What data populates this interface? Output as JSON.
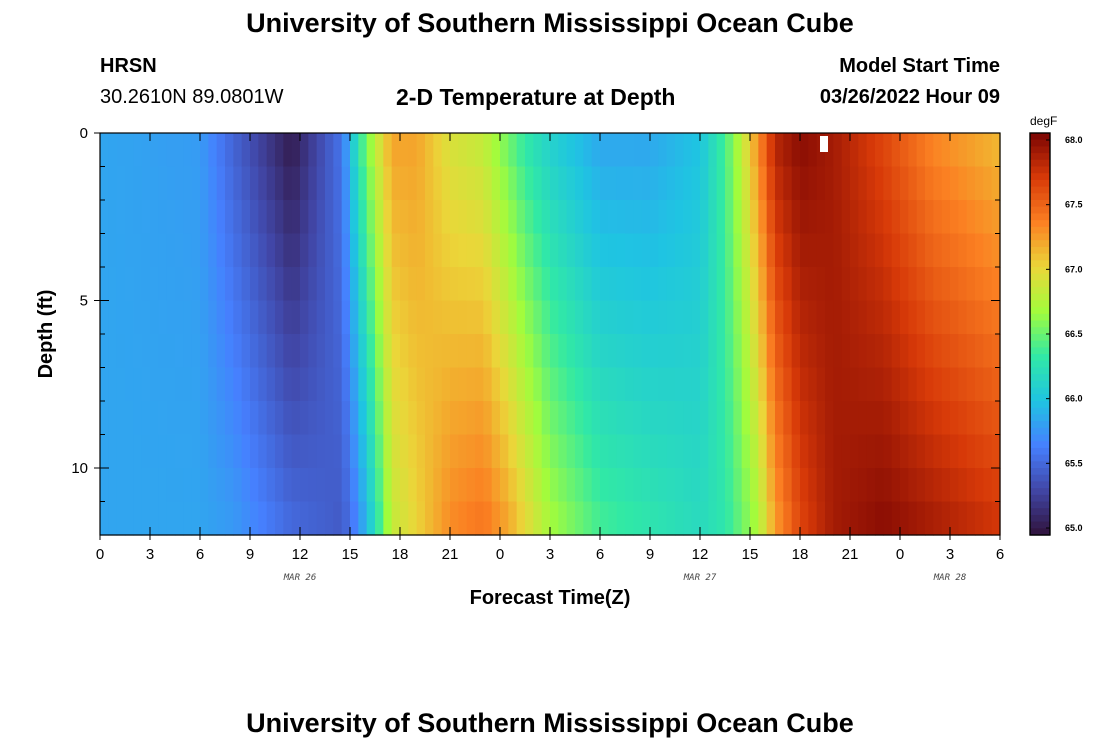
{
  "header": {
    "title": "University of Southern Mississippi Ocean Cube",
    "station": "HRSN",
    "coordinates": "30.2610N  89.0801W",
    "subtitle": "2-D Temperature at Depth",
    "model_start_label": "Model Start Time",
    "model_start_value": "03/26/2022 Hour 09"
  },
  "footer": {
    "title": "University of Southern Mississippi Ocean Cube"
  },
  "chart_data": {
    "type": "heatmap",
    "title": "2-D Temperature at Depth",
    "xlabel": "Forecast Time(Z)",
    "ylabel": "Depth (ft)",
    "x_tick_labels": [
      "0",
      "3",
      "6",
      "9",
      "12",
      "15",
      "18",
      "21",
      "0",
      "3",
      "6",
      "9",
      "12",
      "15",
      "18",
      "21",
      "0",
      "3",
      "6"
    ],
    "date_labels": [
      "MAR 26",
      "MAR 27",
      "MAR 28"
    ],
    "y_tick_labels": [
      "0",
      "5",
      "10"
    ],
    "ylim": [
      0,
      12
    ],
    "colorbar": {
      "unit": "degF",
      "min": 65.0,
      "max": 68.0,
      "tick_labels": [
        "68.0",
        "67.5",
        "67.0",
        "66.5",
        "66.0",
        "65.5",
        "65.0"
      ],
      "colors": [
        "#30123b",
        "#4146a6",
        "#4680ff",
        "#1fc4e2",
        "#31e9a5",
        "#a2fc3c",
        "#ebd639",
        "#fb8022",
        "#d73908",
        "#7a0403"
      ]
    },
    "time_points": [
      {
        "hours": 0,
        "surface": 65.85,
        "bottom": 65.85
      },
      {
        "hours": 6,
        "surface": 65.8,
        "bottom": 65.85
      },
      {
        "hours": 8,
        "surface": 65.5,
        "bottom": 65.8
      },
      {
        "hours": 11.5,
        "surface": 65.05,
        "bottom": 65.55
      },
      {
        "hours": 14.5,
        "surface": 65.6,
        "bottom": 65.45
      },
      {
        "hours": 15.5,
        "surface": 66.3,
        "bottom": 65.7
      },
      {
        "hours": 16.5,
        "surface": 66.8,
        "bottom": 66.2
      },
      {
        "hours": 17.5,
        "surface": 67.2,
        "bottom": 66.8
      },
      {
        "hours": 19,
        "surface": 67.2,
        "bottom": 67.0
      },
      {
        "hours": 21,
        "surface": 66.9,
        "bottom": 67.3
      },
      {
        "hours": 23,
        "surface": 66.8,
        "bottom": 67.4
      },
      {
        "hours": 24.5,
        "surface": 66.5,
        "bottom": 67.2
      },
      {
        "hours": 25.5,
        "surface": 66.3,
        "bottom": 67.0
      },
      {
        "hours": 27,
        "surface": 66.1,
        "bottom": 66.7
      },
      {
        "hours": 30,
        "surface": 65.85,
        "bottom": 66.4
      },
      {
        "hours": 33,
        "surface": 65.85,
        "bottom": 66.3
      },
      {
        "hours": 36,
        "surface": 66.0,
        "bottom": 66.2
      },
      {
        "hours": 37.5,
        "surface": 66.4,
        "bottom": 66.3
      },
      {
        "hours": 38.5,
        "surface": 66.8,
        "bottom": 66.5
      },
      {
        "hours": 39.5,
        "surface": 67.3,
        "bottom": 66.7
      },
      {
        "hours": 40.5,
        "surface": 67.8,
        "bottom": 67.2
      },
      {
        "hours": 42,
        "surface": 67.95,
        "bottom": 67.6
      },
      {
        "hours": 44,
        "surface": 67.85,
        "bottom": 67.85
      },
      {
        "hours": 47,
        "surface": 67.6,
        "bottom": 67.95
      },
      {
        "hours": 50,
        "surface": 67.3,
        "bottom": 67.85
      },
      {
        "hours": 54,
        "surface": 67.1,
        "bottom": 67.7
      }
    ]
  }
}
